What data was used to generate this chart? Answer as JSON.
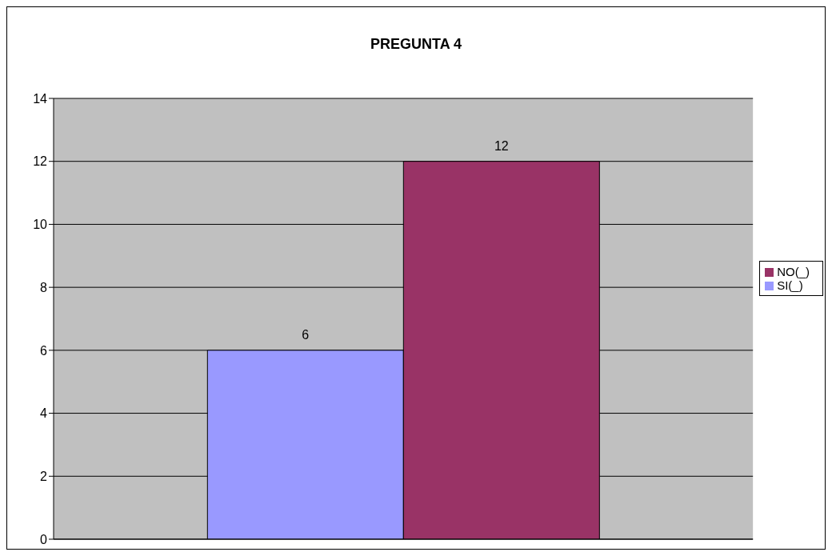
{
  "chart_data": {
    "type": "bar",
    "title": "PREGUNTA 4",
    "categories": [
      null
    ],
    "series": [
      {
        "name": "SI(_)",
        "color": "#9999ff",
        "values": [
          6
        ]
      },
      {
        "name": "NO(_)",
        "color": "#993366",
        "values": [
          12
        ]
      }
    ],
    "ylim": [
      0,
      14
    ],
    "yticks": [
      0,
      2,
      4,
      6,
      8,
      10,
      12,
      14
    ],
    "grid": "y",
    "legend": "right",
    "data_labels": true
  }
}
